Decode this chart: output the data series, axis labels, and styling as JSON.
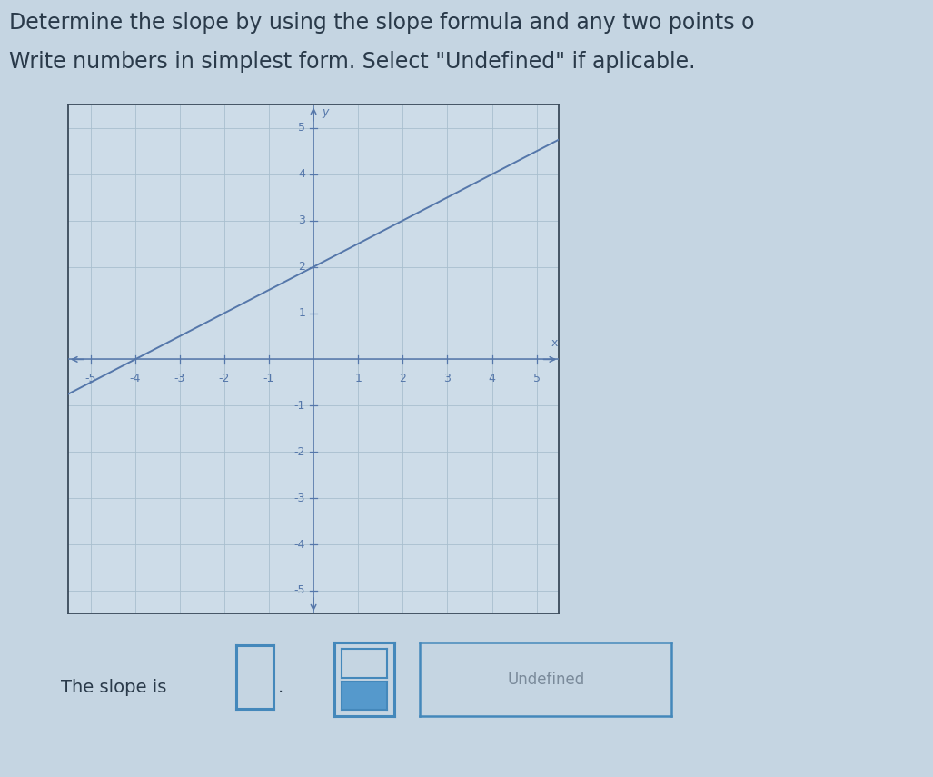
{
  "title_line1": "Determine the slope by using the slope formula and any two points o",
  "title_line2": "Write numbers in simplest form. Select \"Undefined\" if aplicable.",
  "background_color": "#c5d5e2",
  "graph_bg": "#cddce8",
  "line_color": "#5577aa",
  "axis_color": "#5577aa",
  "grid_color": "#a8bfce",
  "box_color": "#4488bb",
  "xlabel": "x",
  "ylabel": "y",
  "xlim": [
    -5.5,
    5.5
  ],
  "ylim": [
    -5.5,
    5.5
  ],
  "slope": 0.5,
  "intercept": 2.0,
  "slope_text": "The slope is",
  "font_size_title": 17,
  "font_size_labels": 14,
  "text_color": "#2a3a4a",
  "tick_fontsize": 9
}
